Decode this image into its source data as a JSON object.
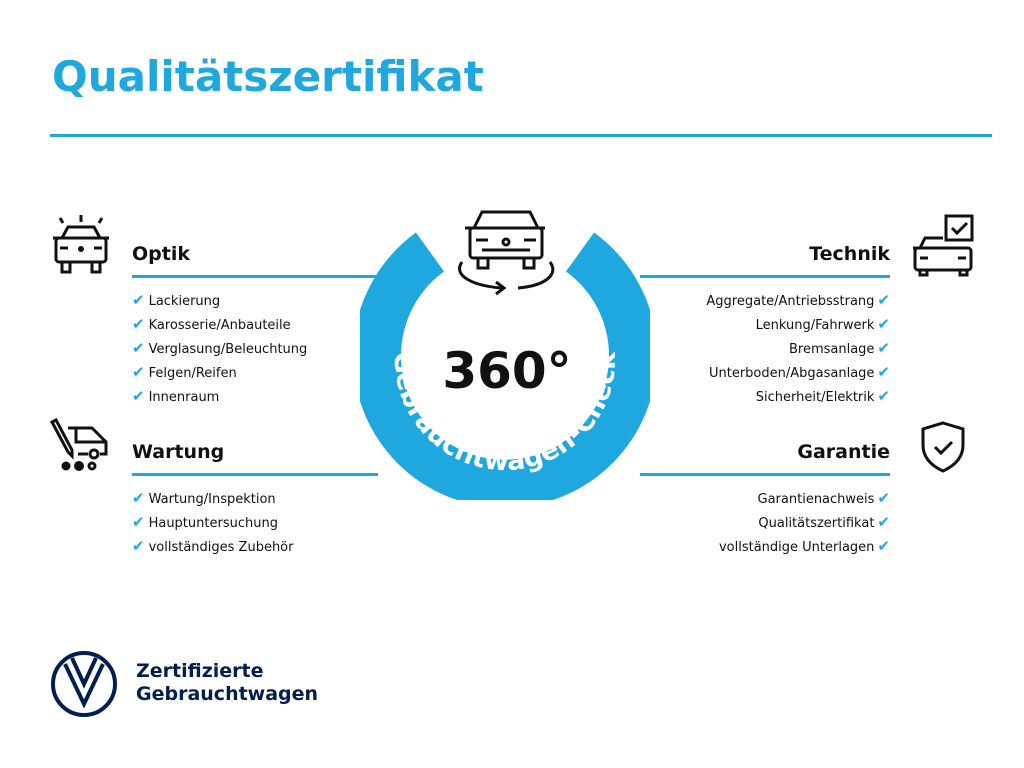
{
  "title": "Qualitätszertifikat",
  "center": {
    "degrees": "360°",
    "ring_text": "Gebrauchtwagen-Check"
  },
  "sections": {
    "optik": {
      "title": "Optik",
      "items": [
        "Lackierung",
        "Karosserie/Anbauteile",
        "Verglasung/Beleuchtung",
        "Felgen/Reifen",
        "Innenraum"
      ]
    },
    "wartung": {
      "title": "Wartung",
      "items": [
        "Wartung/Inspektion",
        "Hauptuntersuchung",
        "vollständiges Zubehör"
      ]
    },
    "technik": {
      "title": "Technik",
      "items": [
        "Aggregate/Antriebsstrang",
        "Lenkung/Fahrwerk",
        "Bremsanlage",
        "Unterboden/Abgasanlage",
        "Sicherheit/Elektrik"
      ]
    },
    "garantie": {
      "title": "Garantie",
      "items": [
        "Garantienachweis",
        "Qualitätszertifikat",
        "vollständige Unterlagen"
      ]
    }
  },
  "check_mark": "✔",
  "footer": {
    "line1": "Zertifizierte",
    "line2": "Gebrauchtwagen"
  },
  "colors": {
    "accent": "#1fa8e0",
    "brand": "#001e50"
  }
}
